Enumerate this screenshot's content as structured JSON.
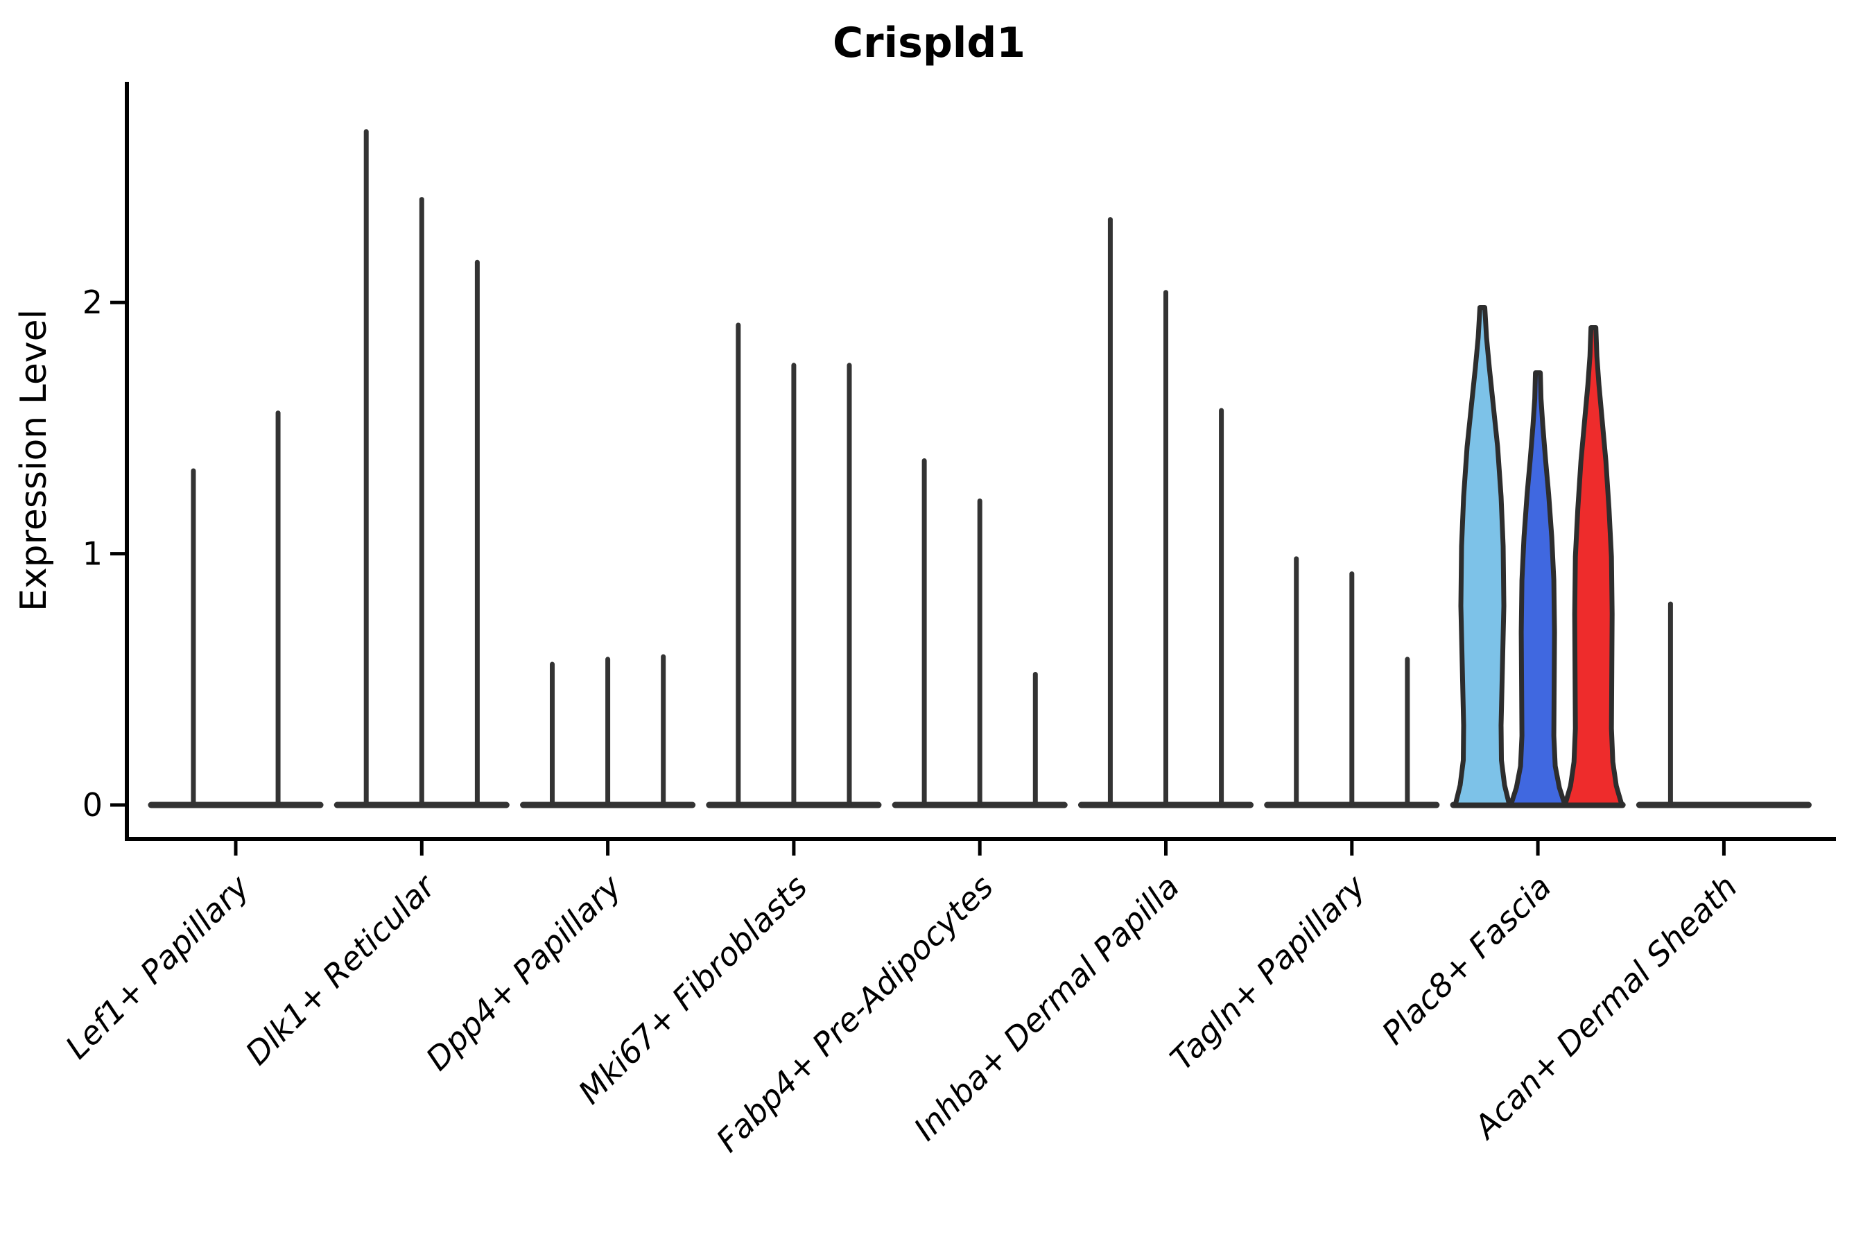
{
  "title": "Crispld1",
  "chart_data": {
    "type": "violin",
    "title": "Crispld1",
    "xlabel": "",
    "ylabel": "Expression Level",
    "yticks": [
      0,
      1,
      2
    ],
    "ylim": [
      -0.14,
      2.88
    ],
    "grid": false,
    "legend": "none",
    "colors": {
      "axis": "#000000",
      "spike": "#333333",
      "violin_stroke": "#2d2d2d",
      "highlight_fills": [
        "#7dc2e8",
        "#4068e0",
        "#ee2c2c"
      ]
    },
    "baseline_halfwidth_frac": 0.455,
    "categories": [
      {
        "label": "Lef1+ Papillary",
        "violins": [
          {
            "dx": -0.2276,
            "max": 1.33,
            "style": "spike"
          },
          {
            "dx": 0.2276,
            "max": 1.56,
            "style": "spike"
          }
        ]
      },
      {
        "label": "Dlk1+ Reticular",
        "violins": [
          {
            "dx": -0.2985,
            "max": 2.68,
            "style": "spike"
          },
          {
            "dx": 0,
            "max": 2.41,
            "style": "spike"
          },
          {
            "dx": 0.2985,
            "max": 2.16,
            "style": "spike"
          }
        ]
      },
      {
        "label": "Dpp4+ Papillary",
        "violins": [
          {
            "dx": -0.2985,
            "max": 0.56,
            "style": "spike"
          },
          {
            "dx": 0,
            "max": 0.58,
            "style": "spike"
          },
          {
            "dx": 0.2985,
            "max": 0.59,
            "style": "spike"
          }
        ]
      },
      {
        "label": "Mki67+ Fibroblasts",
        "violins": [
          {
            "dx": -0.2985,
            "max": 1.91,
            "style": "spike"
          },
          {
            "dx": 0,
            "max": 1.75,
            "style": "spike"
          },
          {
            "dx": 0.2985,
            "max": 1.75,
            "style": "spike"
          }
        ]
      },
      {
        "label": "Fabp4+ Pre-Adipocytes",
        "violins": [
          {
            "dx": -0.2985,
            "max": 1.37,
            "style": "spike"
          },
          {
            "dx": 0,
            "max": 1.21,
            "style": "spike"
          },
          {
            "dx": 0.2985,
            "max": 0.52,
            "style": "spike"
          }
        ]
      },
      {
        "label": "Inhba+ Dermal Papilla",
        "violins": [
          {
            "dx": -0.2985,
            "max": 2.33,
            "style": "spike"
          },
          {
            "dx": 0,
            "max": 2.04,
            "style": "spike"
          },
          {
            "dx": 0.2985,
            "max": 1.57,
            "style": "spike"
          }
        ]
      },
      {
        "label": "Tagln+ Papillary",
        "violins": [
          {
            "dx": -0.2985,
            "max": 0.98,
            "style": "spike"
          },
          {
            "dx": 0,
            "max": 0.92,
            "style": "spike"
          },
          {
            "dx": 0.2985,
            "max": 0.58,
            "style": "spike"
          }
        ]
      },
      {
        "label": "Plac8+ Fascia",
        "violins": [
          {
            "dx": -0.2985,
            "max": 1.98,
            "style": "violin",
            "fill": "#7dc2e8",
            "profile": [
              [
                0,
                39
              ],
              [
                0.04,
                32
              ],
              [
                0.09,
                27.5
              ],
              [
                0.16,
                27
              ],
              [
                0.28,
                29
              ],
              [
                0.4,
                31
              ],
              [
                0.52,
                30
              ],
              [
                0.62,
                27
              ],
              [
                0.72,
                22
              ],
              [
                0.8,
                16
              ],
              [
                0.88,
                10
              ],
              [
                0.94,
                6
              ],
              [
                1,
                3.5
              ]
            ]
          },
          {
            "dx": 0,
            "max": 1.72,
            "style": "violin",
            "fill": "#4068e0",
            "profile": [
              [
                0,
                39
              ],
              [
                0.04,
                31
              ],
              [
                0.09,
                25
              ],
              [
                0.16,
                23
              ],
              [
                0.28,
                23.5
              ],
              [
                0.4,
                24
              ],
              [
                0.52,
                23
              ],
              [
                0.62,
                20
              ],
              [
                0.72,
                15.5
              ],
              [
                0.8,
                11
              ],
              [
                0.88,
                7
              ],
              [
                0.94,
                4.5
              ],
              [
                1,
                3.5
              ]
            ]
          },
          {
            "dx": 0.2985,
            "max": 1.9,
            "style": "violin",
            "fill": "#ee2c2c",
            "profile": [
              [
                0,
                41
              ],
              [
                0.04,
                33
              ],
              [
                0.09,
                28
              ],
              [
                0.16,
                26
              ],
              [
                0.28,
                26.5
              ],
              [
                0.4,
                27
              ],
              [
                0.52,
                26
              ],
              [
                0.62,
                22.5
              ],
              [
                0.72,
                18
              ],
              [
                0.8,
                13
              ],
              [
                0.88,
                8
              ],
              [
                0.94,
                5
              ],
              [
                1,
                3.5
              ]
            ]
          }
        ]
      },
      {
        "label": "Acan+ Dermal Sheath",
        "violins": [
          {
            "dx": -0.287,
            "max": 0.8,
            "style": "spike"
          }
        ]
      }
    ]
  }
}
